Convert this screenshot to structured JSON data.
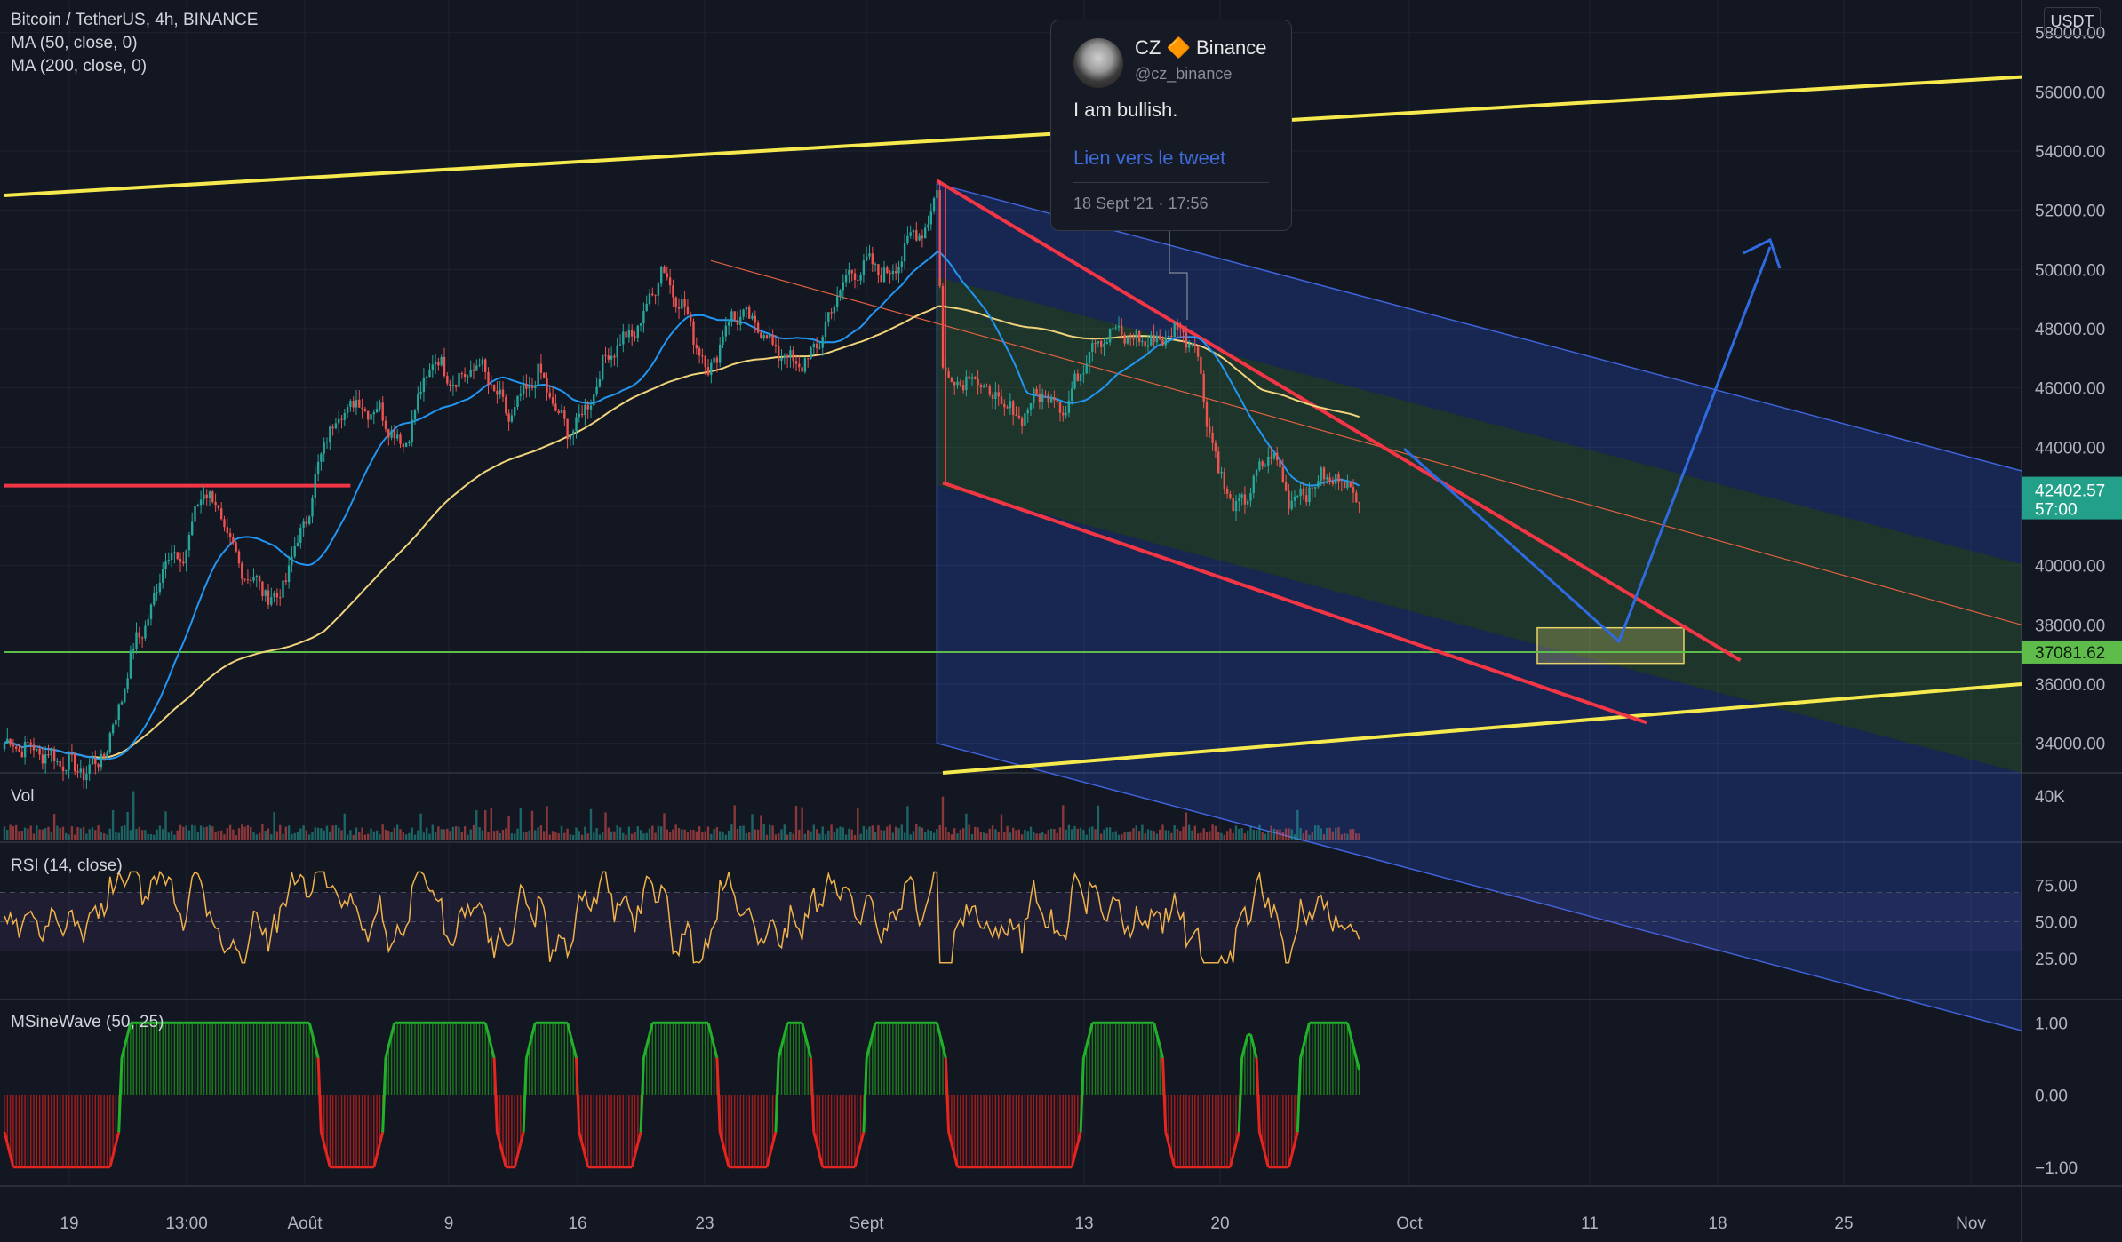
{
  "header": {
    "symbol_line": "Bitcoin / TetherUS, 4h, BINANCE",
    "ma50_label": "MA (50, close, 0)",
    "ma200_label": "MA (200, close, 0)"
  },
  "currency_button": "USDT",
  "tweet": {
    "name": "CZ 🔶 Binance",
    "handle": "@cz_binance",
    "text": "I am bullish.",
    "link": "Lien vers le tweet",
    "date": "18 Sept '21 · 17:56"
  },
  "panes": {
    "volume_label": "Vol",
    "rsi_label": "RSI (14, close)",
    "sine_label": "MSineWave (50, 25)"
  },
  "colors": {
    "background": "#131722",
    "up": "#26a69a",
    "down": "#ef5350",
    "ma50": "#2196f3",
    "ma200": "#f0d37a",
    "channel_line": "#f5e94e",
    "support": "#5ebd4a",
    "resistance": "#f23645",
    "arrow": "#2f6be0"
  },
  "chart_data": {
    "type": "candlestick",
    "symbol": "Bitcoin / TetherUS",
    "interval": "4h",
    "exchange": "BINANCE",
    "x_tick_labels": [
      "19",
      "13:00",
      "Août",
      "9",
      "16",
      "23",
      "Sept",
      "13",
      "20",
      "Oct",
      "11",
      "18",
      "25",
      "Nov"
    ],
    "y_tick_labels": [
      "58000.00",
      "56000.00",
      "54000.00",
      "52000.00",
      "50000.00",
      "48000.00",
      "46000.00",
      "44000.00",
      "42000.00",
      "40000.00",
      "38000.00",
      "36000.00",
      "34000.00"
    ],
    "y_range": [
      33000,
      58800
    ],
    "price_anchors": [
      [
        0,
        34000
      ],
      [
        10,
        33800
      ],
      [
        28,
        33000
      ],
      [
        35,
        33800
      ],
      [
        45,
        37500
      ],
      [
        50,
        38400
      ],
      [
        55,
        40500
      ],
      [
        60,
        40000
      ],
      [
        68,
        42700
      ],
      [
        72,
        42000
      ],
      [
        80,
        40000
      ],
      [
        88,
        39200
      ],
      [
        93,
        38800
      ],
      [
        99,
        40500
      ],
      [
        104,
        42000
      ],
      [
        110,
        44500
      ],
      [
        118,
        45500
      ],
      [
        128,
        45200
      ],
      [
        136,
        44000
      ],
      [
        146,
        47000
      ],
      [
        154,
        46200
      ],
      [
        162,
        46800
      ],
      [
        172,
        45000
      ],
      [
        182,
        46500
      ],
      [
        192,
        44500
      ],
      [
        198,
        45200
      ],
      [
        206,
        47200
      ],
      [
        216,
        48000
      ],
      [
        224,
        50000
      ],
      [
        232,
        48600
      ],
      [
        240,
        46500
      ],
      [
        248,
        48500
      ],
      [
        256,
        48200
      ],
      [
        264,
        47200
      ],
      [
        272,
        46700
      ],
      [
        278,
        47600
      ],
      [
        286,
        49600
      ],
      [
        294,
        50200
      ],
      [
        302,
        49800
      ],
      [
        310,
        51200
      ],
      [
        315,
        51500
      ],
      [
        318,
        52700
      ],
      [
        320,
        46800
      ],
      [
        322,
        46200
      ],
      [
        330,
        46400
      ],
      [
        338,
        45600
      ],
      [
        346,
        45000
      ],
      [
        354,
        45900
      ],
      [
        362,
        45300
      ],
      [
        370,
        47400
      ],
      [
        378,
        47900
      ],
      [
        386,
        47600
      ],
      [
        394,
        47600
      ],
      [
        400,
        48000
      ],
      [
        406,
        47500
      ],
      [
        410,
        45100
      ],
      [
        414,
        43200
      ],
      [
        420,
        41800
      ],
      [
        426,
        42800
      ],
      [
        432,
        43900
      ],
      [
        438,
        42300
      ],
      [
        444,
        42500
      ],
      [
        450,
        43000
      ],
      [
        458,
        42800
      ],
      [
        462,
        42200
      ]
    ],
    "last_price": "42402.57",
    "countdown": "57:00",
    "support_level": "37081.62",
    "series": [
      {
        "name": "MA (50, close, 0)"
      },
      {
        "name": "MA (200, close, 0)"
      }
    ],
    "volume": {
      "label": "Vol",
      "y_tick_labels": [
        "40K"
      ]
    },
    "rsi": {
      "label": "RSI (14, close)",
      "y_tick_labels": [
        "75.00",
        "50.00",
        "25.00"
      ],
      "y_range": [
        0,
        100
      ],
      "bands": [
        30,
        70
      ]
    },
    "sinewave": {
      "label": "MSineWave (50, 25)",
      "y_tick_labels": [
        "1.00",
        "0.00",
        "−1.00"
      ],
      "y_range": [
        -1.2,
        1.2
      ],
      "phases": [
        {
          "start": 0,
          "end": 40,
          "value": -1
        },
        {
          "start": 40,
          "end": 108,
          "value": 1
        },
        {
          "start": 108,
          "end": 130,
          "value": -1
        },
        {
          "start": 130,
          "end": 168,
          "value": 1
        },
        {
          "start": 168,
          "end": 178,
          "value": -1
        },
        {
          "start": 178,
          "end": 196,
          "value": 1
        },
        {
          "start": 196,
          "end": 218,
          "value": -1
        },
        {
          "start": 218,
          "end": 244,
          "value": 1
        },
        {
          "start": 244,
          "end": 264,
          "value": -1
        },
        {
          "start": 264,
          "end": 276,
          "value": 1
        },
        {
          "start": 276,
          "end": 294,
          "value": -1
        },
        {
          "start": 294,
          "end": 322,
          "value": 1
        },
        {
          "start": 322,
          "end": 368,
          "value": -1
        },
        {
          "start": 368,
          "end": 396,
          "value": 1
        },
        {
          "start": 396,
          "end": 422,
          "value": -1
        },
        {
          "start": 422,
          "end": 428,
          "value": 1
        },
        {
          "start": 428,
          "end": 442,
          "value": -1
        },
        {
          "start": 442,
          "end": 462,
          "value": 1
        }
      ]
    },
    "drawings": [
      {
        "name": "upper-yellow-trendline",
        "from": [
          0,
          52500
        ],
        "to": [
          900,
          56500
        ]
      },
      {
        "name": "lower-yellow-trendline",
        "from": [
          320,
          33000
        ],
        "to": [
          900,
          36000
        ]
      },
      {
        "name": "red-horizontal-resistance",
        "from": [
          0,
          42700
        ],
        "to": [
          118,
          42700
        ]
      },
      {
        "name": "green-horizontal-support",
        "from": [
          0,
          37081.62
        ],
        "to": [
          900,
          37081.62
        ]
      },
      {
        "name": "red-descending-trendline",
        "from": [
          318,
          53000
        ],
        "to": [
          592,
          36800
        ]
      },
      {
        "name": "red-lower-trendline",
        "from": [
          320,
          42800
        ],
        "to": [
          560,
          34700
        ]
      }
    ]
  }
}
